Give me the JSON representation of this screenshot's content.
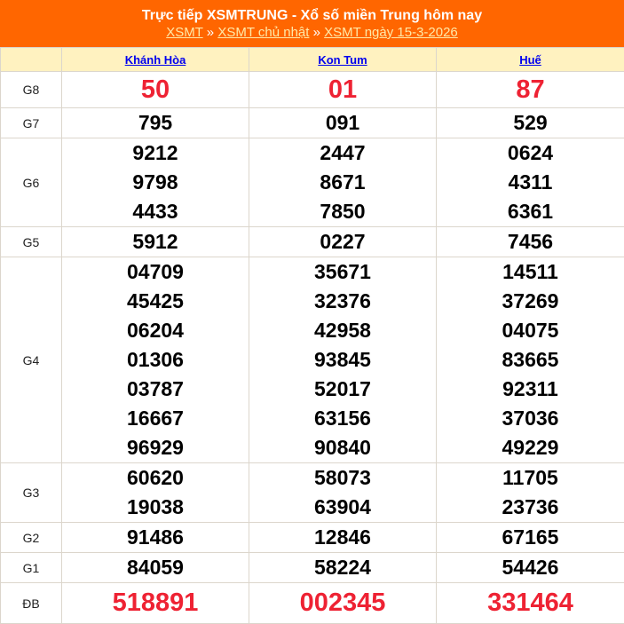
{
  "header": {
    "title": "Trực tiếp XSMTRUNG - Xổ số miền Trung hôm nay",
    "breadcrumb": [
      "XSMT",
      "XSMT chủ nhật",
      "XSMT ngày 15-3-2026"
    ],
    "separator": "»"
  },
  "colors": {
    "header_bg": "#ff6600",
    "column_header_bg": "#fff2c0",
    "highlight": "#ee2233"
  },
  "provinces": [
    "Khánh Hòa",
    "Kon Tum",
    "Huế"
  ],
  "prizes": [
    {
      "label": "G8",
      "style": "big",
      "values": [
        [
          "50"
        ],
        [
          "01"
        ],
        [
          "87"
        ]
      ]
    },
    {
      "label": "G7",
      "values": [
        [
          "795"
        ],
        [
          "091"
        ],
        [
          "529"
        ]
      ]
    },
    {
      "label": "G6",
      "values": [
        [
          "9212",
          "9798",
          "4433"
        ],
        [
          "2447",
          "8671",
          "7850"
        ],
        [
          "0624",
          "4311",
          "6361"
        ]
      ]
    },
    {
      "label": "G5",
      "values": [
        [
          "5912"
        ],
        [
          "0227"
        ],
        [
          "7456"
        ]
      ]
    },
    {
      "label": "G4",
      "values": [
        [
          "04709",
          "45425",
          "06204",
          "01306",
          "03787",
          "16667",
          "96929"
        ],
        [
          "35671",
          "32376",
          "42958",
          "93845",
          "52017",
          "63156",
          "90840"
        ],
        [
          "14511",
          "37269",
          "04075",
          "83665",
          "92311",
          "37036",
          "49229"
        ]
      ]
    },
    {
      "label": "G3",
      "values": [
        [
          "60620",
          "19038"
        ],
        [
          "58073",
          "63904"
        ],
        [
          "11705",
          "23736"
        ]
      ]
    },
    {
      "label": "G2",
      "values": [
        [
          "91486"
        ],
        [
          "12846"
        ],
        [
          "67165"
        ]
      ]
    },
    {
      "label": "G1",
      "values": [
        [
          "84059"
        ],
        [
          "58224"
        ],
        [
          "54426"
        ]
      ]
    },
    {
      "label": "ĐB",
      "style": "big",
      "values": [
        [
          "518891"
        ],
        [
          "002345"
        ],
        [
          "331464"
        ]
      ]
    }
  ]
}
